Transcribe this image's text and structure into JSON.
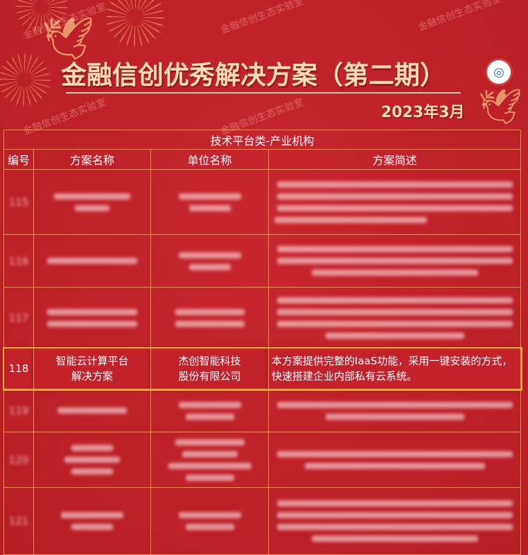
{
  "header": {
    "title": "金融信创优秀解决方案（第二期）",
    "date": "2023年3月",
    "watermark": "金融信创生态实验室"
  },
  "table": {
    "category": "技术平台类-产业机构",
    "columns": [
      "编号",
      "方案名称",
      "单位名称",
      "方案简述"
    ],
    "blurred_rows": [
      {
        "no": "115"
      },
      {
        "no": "116"
      },
      {
        "no": "117"
      }
    ],
    "highlighted_row": {
      "no": "118",
      "name": "智能云计算平台解决方案",
      "company": "杰创智能科技股份有限公司",
      "description": "本方案提供完整的IaaS功能，采用一键安装的方式，快速搭建企业内部私有云系统。"
    },
    "blurred_rows_after": [
      {
        "no": "119"
      },
      {
        "no": "120"
      },
      {
        "no": "121"
      }
    ]
  },
  "colors": {
    "background": "#c3222a",
    "border": "#e8a040",
    "title": "#f7dcb5"
  }
}
